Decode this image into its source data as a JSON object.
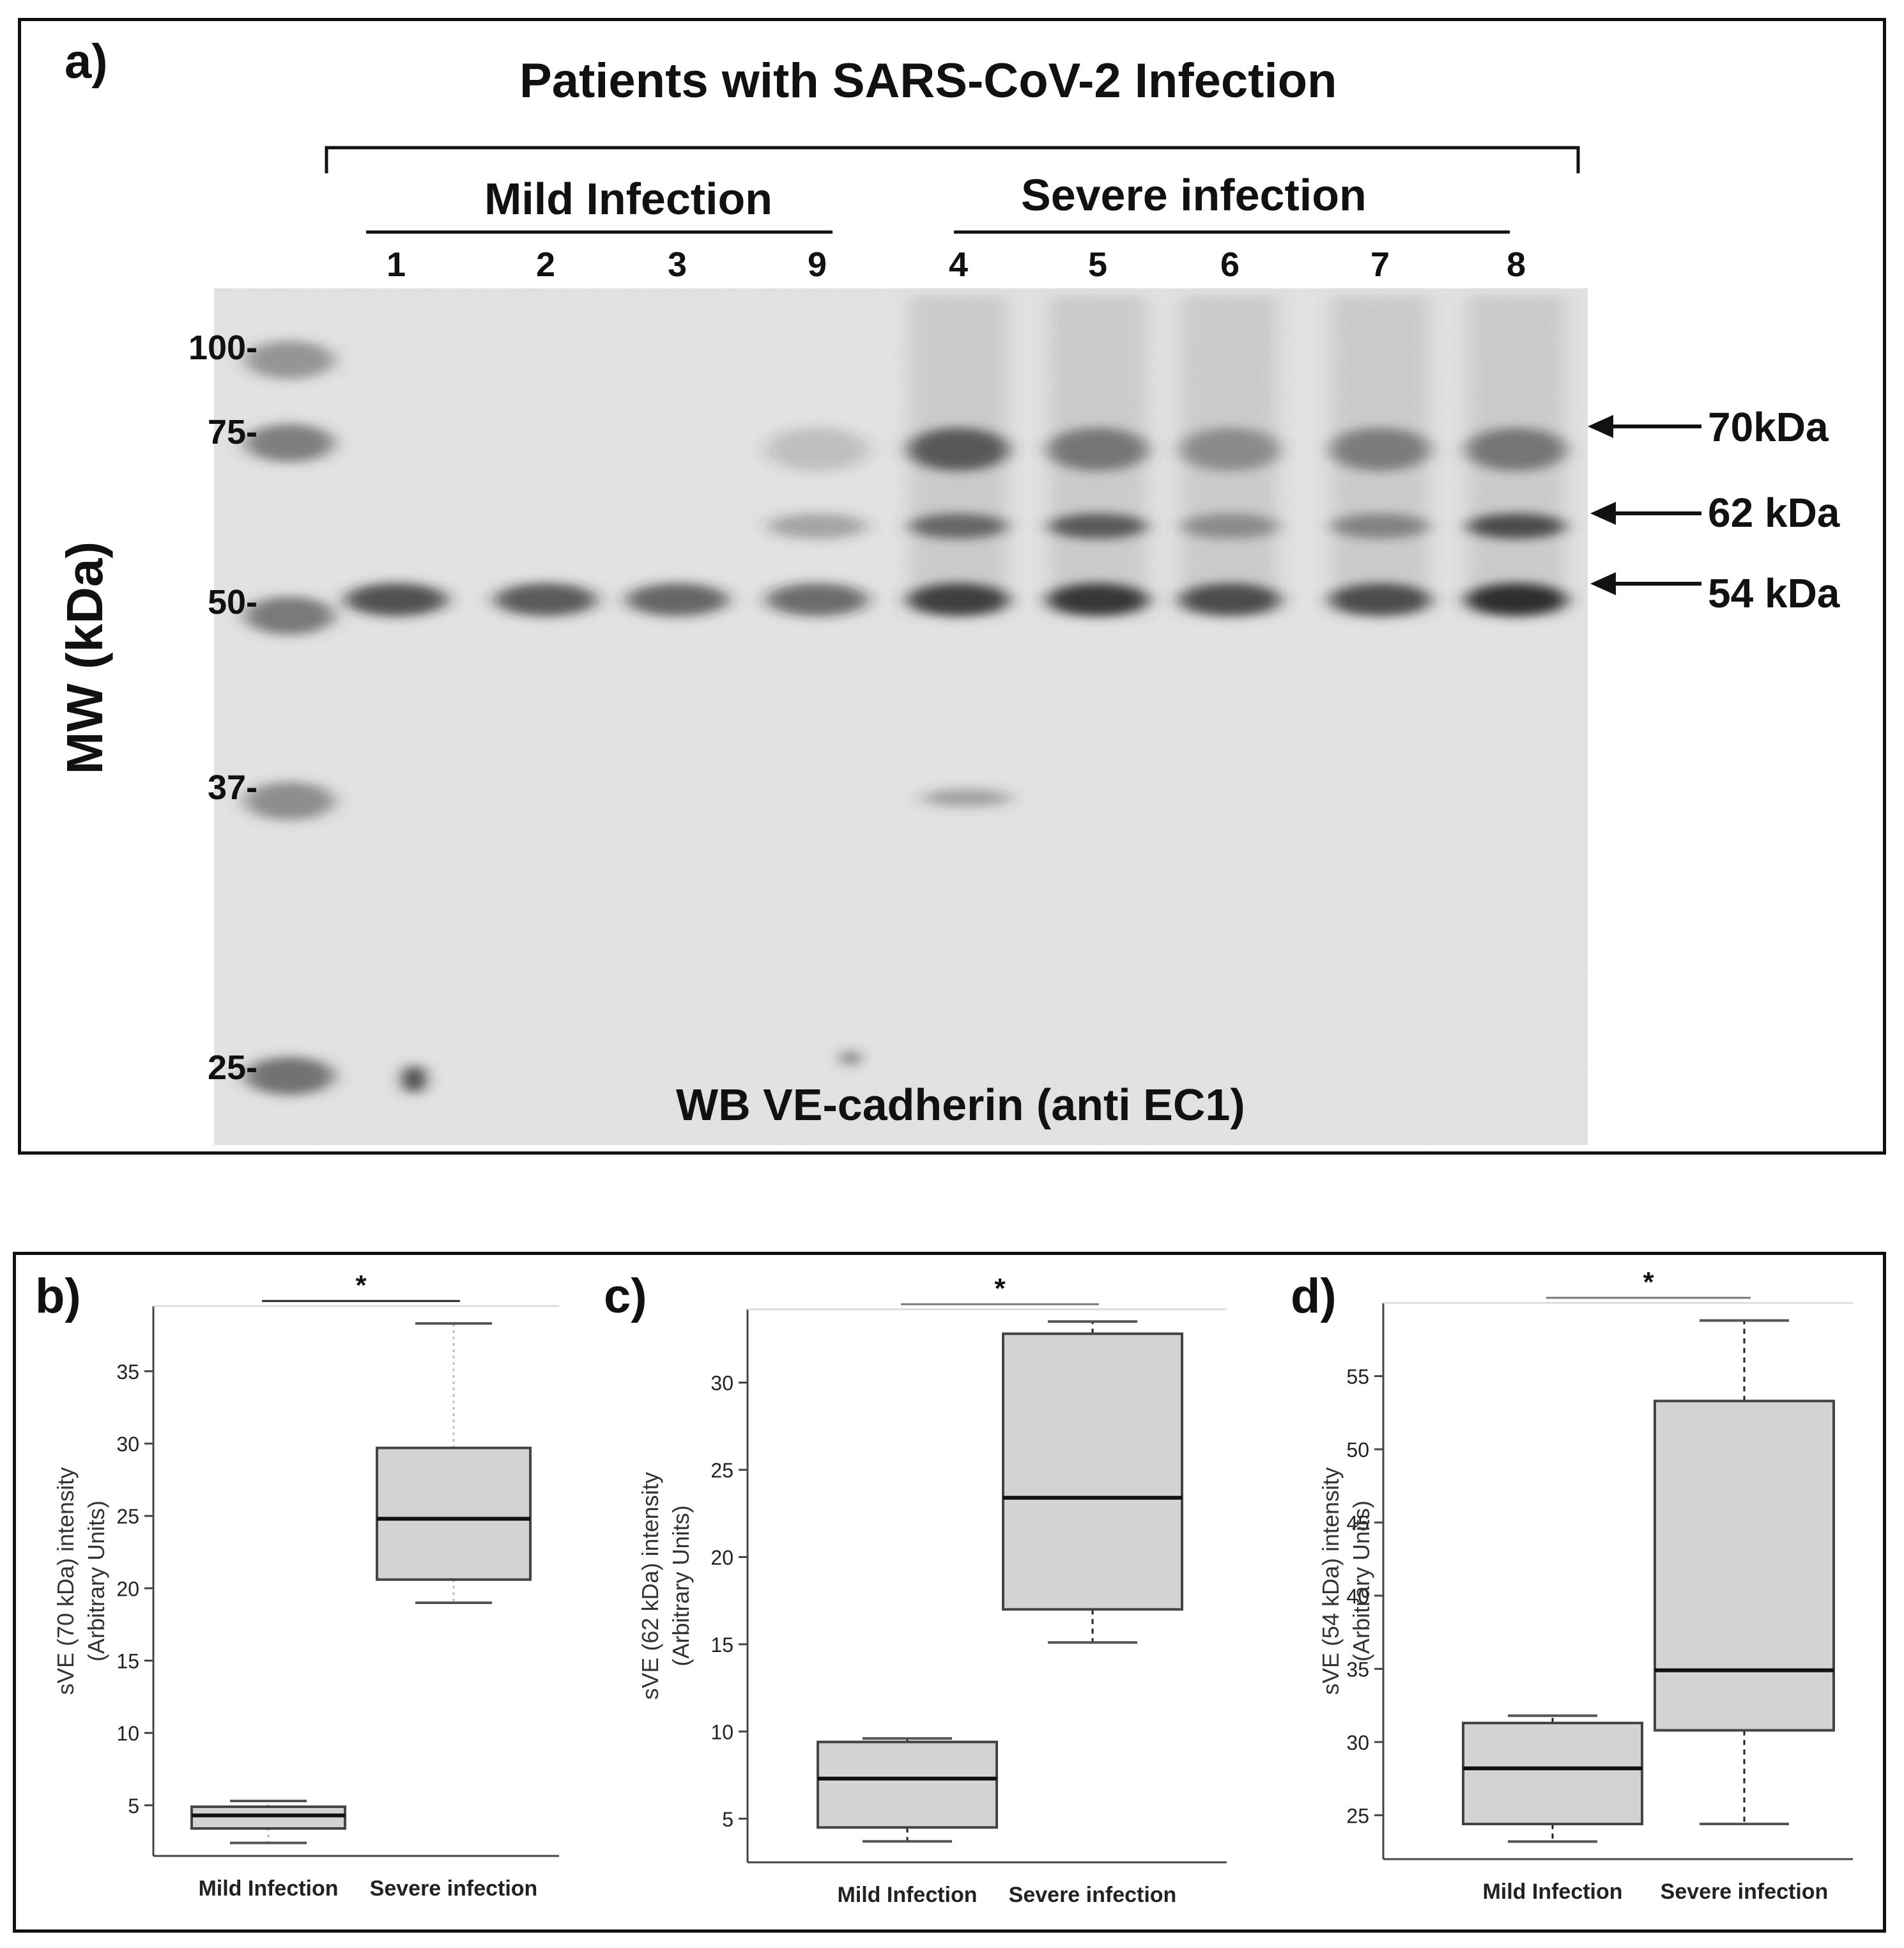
{
  "panel_a": {
    "letter": "a)",
    "title": "Patients with SARS-CoV-2  Infection",
    "groups": [
      {
        "label": "Mild Infection",
        "lanes": [
          "1",
          "2",
          "3",
          "9"
        ]
      },
      {
        "label": "Severe infection",
        "lanes": [
          "4",
          "5",
          "6",
          "7",
          "8"
        ]
      }
    ],
    "y_axis_label": "MW (kDa)",
    "mw_markers": [
      "100-",
      "75-",
      "50-",
      "37-",
      "25-"
    ],
    "bands": [
      {
        "label": "70kDa"
      },
      {
        "label": "62 kDa"
      },
      {
        "label": "54 kDa"
      }
    ],
    "footer": "WB VE-cadherin (anti EC1)",
    "colors": {
      "blot_bg": "#e3e3e3",
      "band": "#333333"
    }
  },
  "chart_data": [
    {
      "type": "box",
      "panel": "b)",
      "title": "",
      "ylabel": "sVE (70 kDa)  intensity\n(Arbitrary Units)",
      "categories": [
        "Mild Infection",
        "Severe  infection"
      ],
      "yticks": [
        5,
        10,
        15,
        20,
        25,
        30,
        35
      ],
      "ylim": [
        1.5,
        39.5
      ],
      "boxes": [
        {
          "min": 2.4,
          "q1": 3.4,
          "median": 4.3,
          "q3": 4.9,
          "max": 5.3
        },
        {
          "min": 19.0,
          "q1": 20.6,
          "median": 24.8,
          "q3": 29.7,
          "max": 38.3
        }
      ],
      "significance": "*",
      "whisker_style": "light"
    },
    {
      "type": "box",
      "panel": "c)",
      "title": "",
      "ylabel": "sVE (62 kDa)  intensity\n(Arbitrary Units)",
      "categories": [
        "Mild Infection",
        "Severe  infection"
      ],
      "yticks": [
        5,
        10,
        15,
        20,
        25,
        30
      ],
      "ylim": [
        2.5,
        34.2
      ],
      "boxes": [
        {
          "min": 3.7,
          "q1": 4.5,
          "median": 7.3,
          "q3": 9.4,
          "max": 9.6
        },
        {
          "min": 15.1,
          "q1": 17.0,
          "median": 23.4,
          "q3": 32.8,
          "max": 33.5
        }
      ],
      "significance": "*",
      "whisker_style": "dashed"
    },
    {
      "type": "box",
      "panel": "d)",
      "title": "",
      "ylabel": "sVE (54 kDa)  intensity\n(Arbitrary Units)",
      "categories": [
        "Mild Infection",
        "Severe  infection"
      ],
      "yticks": [
        25,
        30,
        35,
        40,
        45,
        50,
        55
      ],
      "ylim": [
        22.0,
        60.0
      ],
      "boxes": [
        {
          "min": 23.2,
          "q1": 24.4,
          "median": 28.2,
          "q3": 31.3,
          "max": 31.8
        },
        {
          "min": 24.4,
          "q1": 30.8,
          "median": 34.9,
          "q3": 53.3,
          "max": 58.8
        }
      ],
      "significance": "*",
      "whisker_style": "dashed"
    }
  ]
}
